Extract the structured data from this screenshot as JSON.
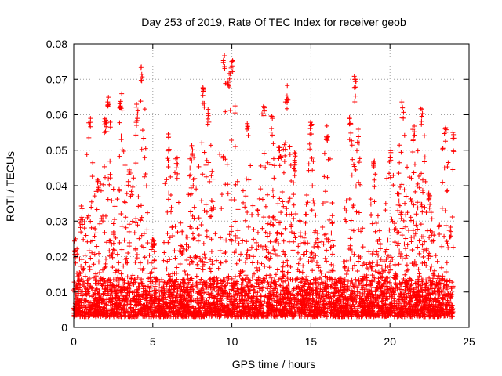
{
  "chart_data": {
    "type": "scatter",
    "title": "Day 253 of 2019, Rate Of TEC Index for receiver geob",
    "xlabel": "GPS time / hours",
    "ylabel": "ROTI / TECUs",
    "xlim": [
      0,
      25
    ],
    "ylim": [
      0,
      0.08
    ],
    "x_ticks": [
      0,
      5,
      10,
      15,
      20,
      25
    ],
    "x_tick_labels": [
      "0",
      "5",
      "10",
      "15",
      "20",
      "25"
    ],
    "y_ticks": [
      0,
      0.01,
      0.02,
      0.03,
      0.04,
      0.05,
      0.06,
      0.07,
      0.08
    ],
    "y_tick_labels": [
      "0",
      "0.01",
      "0.02",
      "0.03",
      "0.04",
      "0.05",
      "0.06",
      "0.07",
      "0.08"
    ],
    "grid": true,
    "marker": "+",
    "series": [
      {
        "name": "ROTI",
        "color": "#ff0000",
        "points_note": "dense per-satellite samples; representative envelope points",
        "x": [
          0.1,
          0.5,
          1.0,
          1.5,
          2.0,
          2.2,
          3.0,
          3.5,
          4.0,
          4.3,
          5.0,
          6.0,
          6.5,
          7.5,
          8.2,
          8.5,
          9.5,
          9.8,
          10.0,
          11.0,
          12.0,
          12.5,
          13.0,
          13.5,
          14.0,
          15.0,
          16.0,
          17.5,
          17.8,
          19.0,
          20.0,
          20.8,
          21.5,
          22.0,
          22.5,
          23.5,
          24.0
        ],
        "y": [
          0.025,
          0.035,
          0.059,
          0.042,
          0.06,
          0.067,
          0.066,
          0.045,
          0.063,
          0.075,
          0.028,
          0.055,
          0.048,
          0.052,
          0.068,
          0.062,
          0.077,
          0.072,
          0.078,
          0.058,
          0.064,
          0.06,
          0.052,
          0.069,
          0.05,
          0.06,
          0.058,
          0.06,
          0.072,
          0.047,
          0.052,
          0.065,
          0.057,
          0.063,
          0.04,
          0.058,
          0.055
        ]
      }
    ]
  }
}
